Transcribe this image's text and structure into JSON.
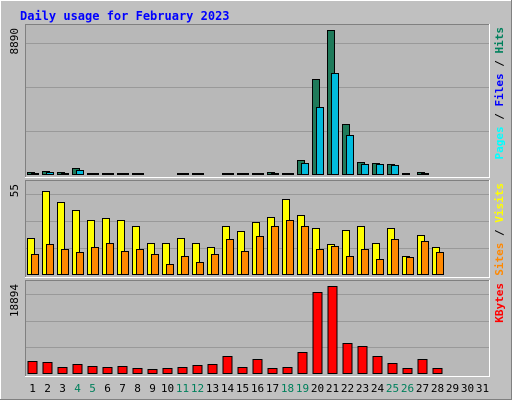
{
  "chart_data": {
    "type": "bar",
    "title": "Daily usage for February 2023",
    "categories": [
      "1",
      "2",
      "3",
      "4",
      "5",
      "6",
      "7",
      "8",
      "9",
      "10",
      "11",
      "12",
      "13",
      "14",
      "15",
      "16",
      "17",
      "18",
      "19",
      "20",
      "21",
      "22",
      "23",
      "24",
      "25",
      "26",
      "27",
      "28",
      "29",
      "30",
      "31"
    ],
    "weekend_days": [
      "4",
      "5",
      "11",
      "12",
      "18",
      "19",
      "25",
      "26"
    ],
    "panels": [
      {
        "id": "hits",
        "y_label_max": "8890",
        "ylim": [
          0,
          8890
        ],
        "legend": [
          "Pages",
          "Files",
          "Hits"
        ],
        "series": [
          {
            "name": "Hits",
            "color": "#1f7a5a",
            "values": [
              180,
              230,
              170,
              400,
              130,
              120,
              130,
              120,
              80,
              80,
              120,
              130,
              90,
              130,
              130,
              120,
              160,
              120,
              950,
              5900,
              8890,
              3100,
              800,
              750,
              700,
              110,
              160,
              90,
              0,
              0,
              0
            ]
          },
          {
            "name": "Files",
            "color": "#00bbdd",
            "values": [
              150,
              200,
              150,
              330,
              110,
              100,
              110,
              100,
              70,
              70,
              100,
              110,
              80,
              110,
              110,
              100,
              130,
              100,
              750,
              4150,
              6250,
              2450,
              680,
              670,
              620,
              90,
              130,
              75,
              0,
              0,
              0
            ]
          },
          {
            "name": "Pages",
            "color": "#00ffff",
            "values": [
              0,
              0,
              0,
              0,
              0,
              0,
              0,
              0,
              0,
              0,
              0,
              0,
              0,
              0,
              0,
              0,
              0,
              0,
              0,
              0,
              0,
              0,
              0,
              0,
              0,
              0,
              0,
              0,
              0,
              0,
              0
            ]
          }
        ]
      },
      {
        "id": "visits",
        "y_label_max": "55",
        "ylim": [
          0,
          55
        ],
        "legend": [
          "Sites",
          "Visits"
        ],
        "series": [
          {
            "name": "Visits",
            "color": "#ffff00",
            "values": [
              23,
              52,
              45,
              40,
              34,
              35,
              34,
              30,
              20,
              20,
              23,
              20,
              17,
              30,
              27,
              33,
              36,
              47,
              37,
              29,
              19,
              28,
              30,
              20,
              29,
              12,
              25,
              17,
              0,
              0,
              0
            ]
          },
          {
            "name": "Sites",
            "color": "#ff8800",
            "values": [
              13,
              19,
              16,
              14,
              17,
              20,
              15,
              16,
              13,
              7,
              12,
              8,
              13,
              22,
              15,
              24,
              30,
              34,
              30,
              16,
              18,
              12,
              16,
              10,
              22,
              11,
              21,
              14,
              0,
              0,
              0
            ]
          }
        ]
      },
      {
        "id": "kbytes",
        "y_label_max": "18894",
        "ylim": [
          0,
          18894
        ],
        "legend": [
          "KBytes"
        ],
        "series": [
          {
            "name": "KBytes",
            "color": "#ff0000",
            "values": [
              2750,
              2600,
              1500,
              2200,
              1700,
              1500,
              1700,
              1300,
              1000,
              1300,
              1400,
              1900,
              2100,
              3800,
              1400,
              3200,
              1200,
              1500,
              4800,
              17500,
              18894,
              6600,
              6100,
              3800,
              2400,
              1200,
              3300,
              1200,
              0,
              0,
              0
            ]
          }
        ]
      }
    ]
  },
  "colors": {
    "background": "#c0c0c0",
    "plot_area": "#b8b8b8",
    "title": "#0000ff",
    "weekday_label": "#000000",
    "weekend_label": "#00805c",
    "gridline": "#999999",
    "legend_hits": "#00805c",
    "legend_files": "#0000ff",
    "legend_pages": "#00ffff",
    "legend_visits": "#ffff00",
    "legend_sites": "#ff8800",
    "legend_kbytes": "#ff0000"
  }
}
